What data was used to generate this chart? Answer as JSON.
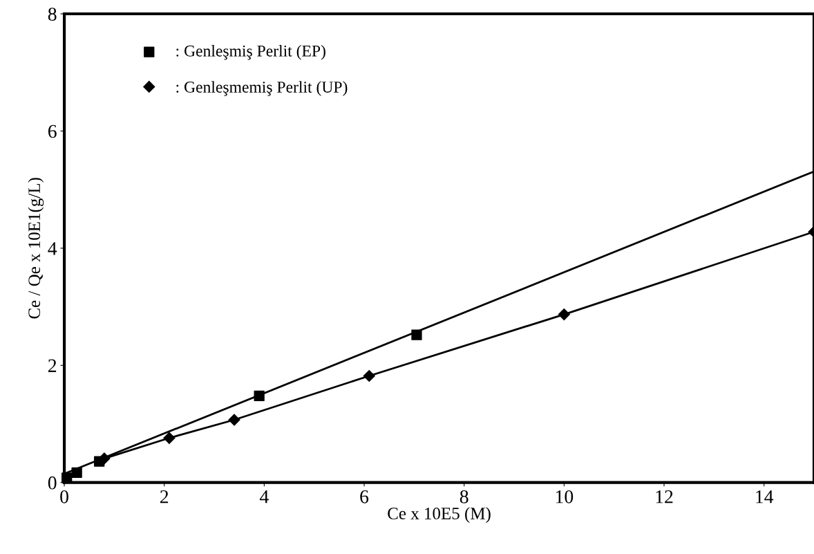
{
  "chart_data": {
    "type": "scatter",
    "xlabel": "Ce x 10E5 (M)",
    "ylabel": "Ce / Qe x 10E1(g/L)",
    "xlim": [
      0,
      15
    ],
    "ylim": [
      0,
      8
    ],
    "xticks": [
      0,
      2,
      4,
      6,
      8,
      10,
      12,
      14
    ],
    "yticks": [
      0,
      2,
      4,
      6,
      8
    ],
    "grid": false,
    "legend": "top left",
    "series": [
      {
        "name": ": Genleşmiş Perlit (EP)",
        "color": "#000000",
        "marker": "square",
        "x": [
          0.05,
          0.25,
          0.7,
          3.9,
          7.05
        ],
        "values": [
          0.08,
          0.17,
          0.36,
          1.48,
          2.52
        ]
      },
      {
        "type": "line",
        "color": "#000000",
        "marker": "none",
        "line_style": "solid",
        "x": [
          0,
          15
        ],
        "values": [
          0.15,
          5.31
        ]
      },
      {
        "name": ": Genleşmemiş Perlit (UP)",
        "type": "line",
        "color": "#000000",
        "marker": "diamond",
        "line_style": "solid",
        "x": [
          0.8,
          2.1,
          3.4,
          6.1,
          10.0,
          15.0
        ],
        "values": [
          0.41,
          0.76,
          1.07,
          1.82,
          2.87,
          4.28
        ]
      }
    ]
  }
}
